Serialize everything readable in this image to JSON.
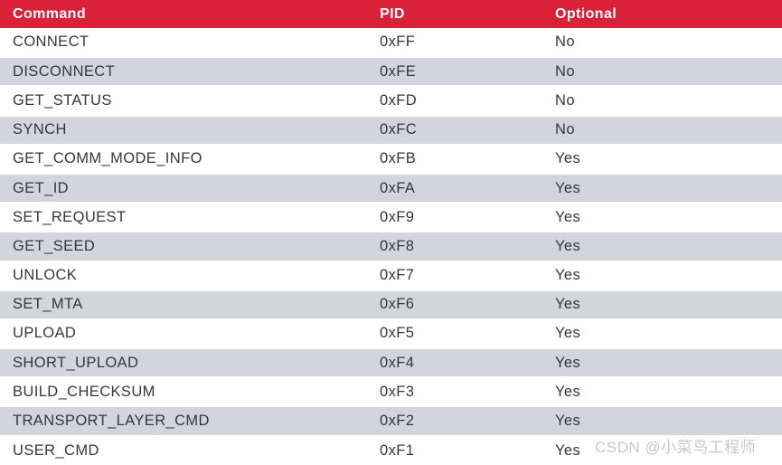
{
  "table": {
    "columns": [
      {
        "key": "command",
        "label": "Command"
      },
      {
        "key": "pid",
        "label": "PID"
      },
      {
        "key": "optional",
        "label": "Optional"
      }
    ],
    "rows": [
      {
        "command": "CONNECT",
        "pid": "0xFF",
        "optional": "No"
      },
      {
        "command": "DISCONNECT",
        "pid": "0xFE",
        "optional": "No"
      },
      {
        "command": "GET_STATUS",
        "pid": "0xFD",
        "optional": "No"
      },
      {
        "command": "SYNCH",
        "pid": "0xFC",
        "optional": "No"
      },
      {
        "command": "GET_COMM_MODE_INFO",
        "pid": "0xFB",
        "optional": "Yes"
      },
      {
        "command": "GET_ID",
        "pid": "0xFA",
        "optional": "Yes"
      },
      {
        "command": "SET_REQUEST",
        "pid": "0xF9",
        "optional": "Yes"
      },
      {
        "command": "GET_SEED",
        "pid": "0xF8",
        "optional": "Yes"
      },
      {
        "command": "UNLOCK",
        "pid": "0xF7",
        "optional": "Yes"
      },
      {
        "command": "SET_MTA",
        "pid": "0xF6",
        "optional": "Yes"
      },
      {
        "command": "UPLOAD",
        "pid": "0xF5",
        "optional": "Yes"
      },
      {
        "command": "SHORT_UPLOAD",
        "pid": "0xF4",
        "optional": "Yes"
      },
      {
        "command": "BUILD_CHECKSUM",
        "pid": "0xF3",
        "optional": "Yes"
      },
      {
        "command": "TRANSPORT_LAYER_CMD",
        "pid": "0xF2",
        "optional": "Yes"
      },
      {
        "command": "USER_CMD",
        "pid": "0xF1",
        "optional": "Yes"
      }
    ]
  },
  "watermark": {
    "text": "CSDN @小菜鸟工程师"
  },
  "colors": {
    "header_bg": "#DB2137",
    "header_text": "#FFFFFF",
    "row_bg": "#FFFFFF",
    "alt_row_bg": "#D2D6DC",
    "row_separator": "#FFFFFF",
    "body_text": "#36363E",
    "watermark_text": "#C7C7C7"
  }
}
